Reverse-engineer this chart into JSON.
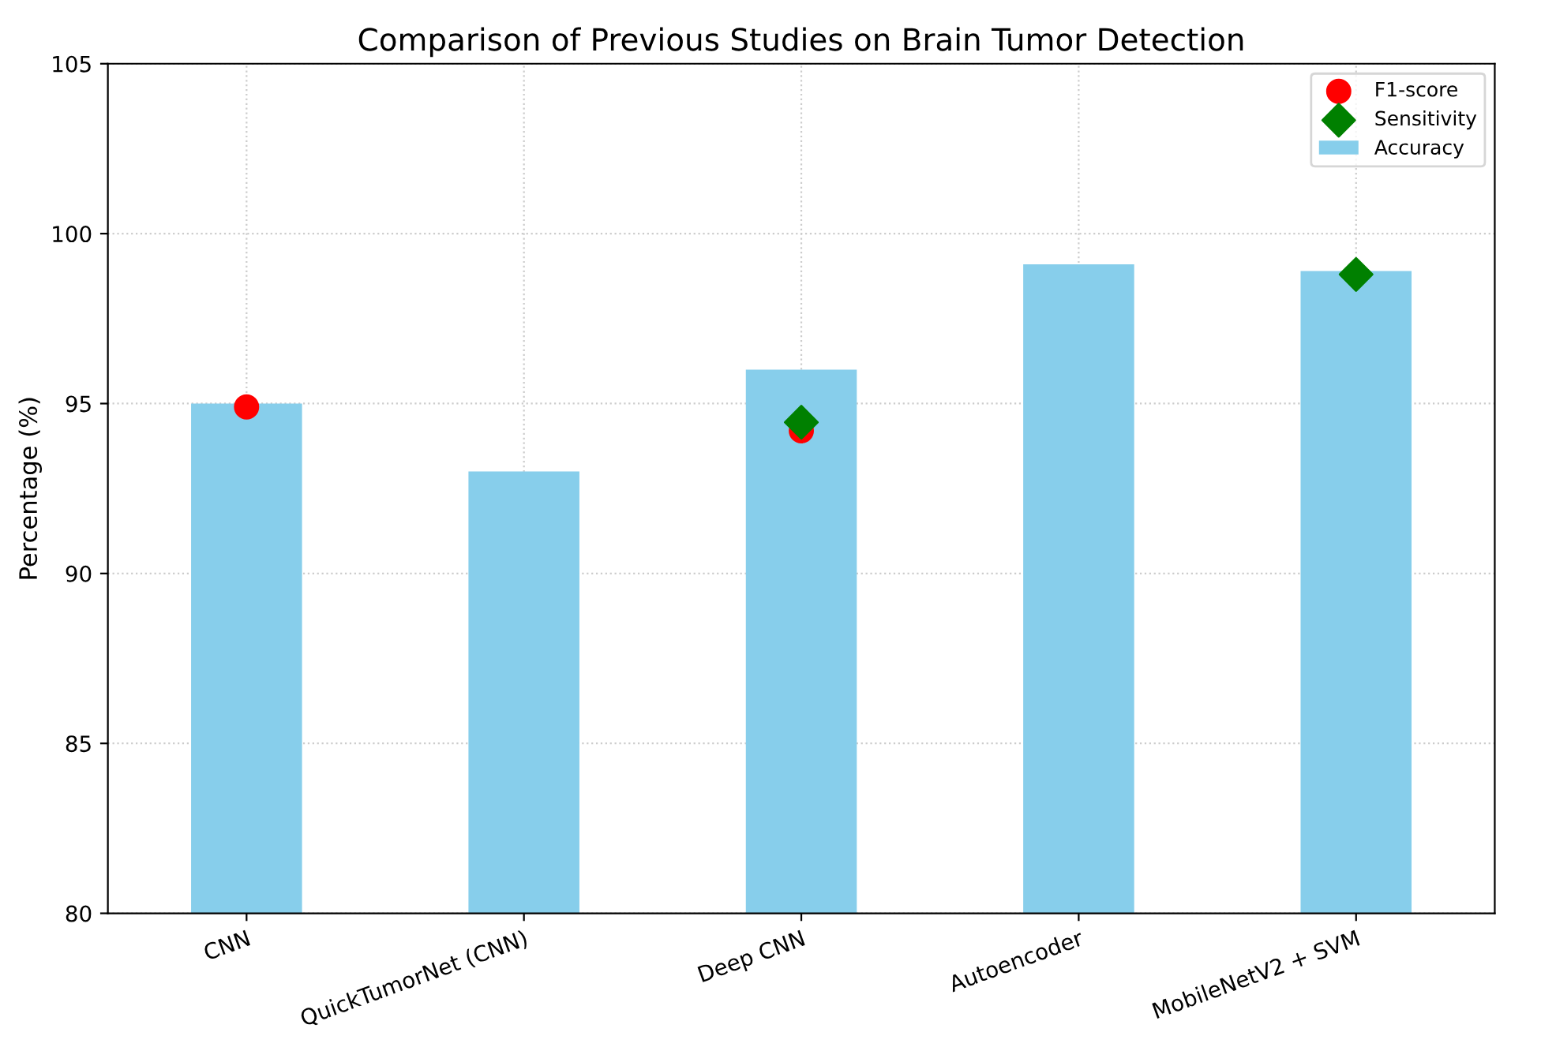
{
  "chart_data": {
    "type": "bar",
    "title": "Comparison of Previous Studies on Brain Tumor Detection",
    "ylabel": "Percentage (%)",
    "categories": [
      "CNN",
      "QuickTumorNet (CNN)",
      "Deep CNN",
      "Autoencoder",
      "MobileNetV2 + SVM"
    ],
    "series": [
      {
        "name": "Accuracy",
        "color": "#87ceeb",
        "values": [
          95.0,
          93.0,
          96.0,
          99.1,
          98.9
        ]
      },
      {
        "name": "F1-score",
        "type": "scatter",
        "marker": "circle",
        "color": "#ff0000",
        "values": [
          94.9,
          null,
          94.2,
          null,
          null
        ]
      },
      {
        "name": "Sensitivity",
        "type": "scatter",
        "marker": "diamond",
        "color": "#008000",
        "values": [
          null,
          null,
          94.45,
          null,
          98.8
        ]
      }
    ],
    "ylim": [
      80,
      105
    ],
    "yticks": [
      80,
      85,
      90,
      95,
      100,
      105
    ],
    "grid": true,
    "legend": "top right"
  }
}
